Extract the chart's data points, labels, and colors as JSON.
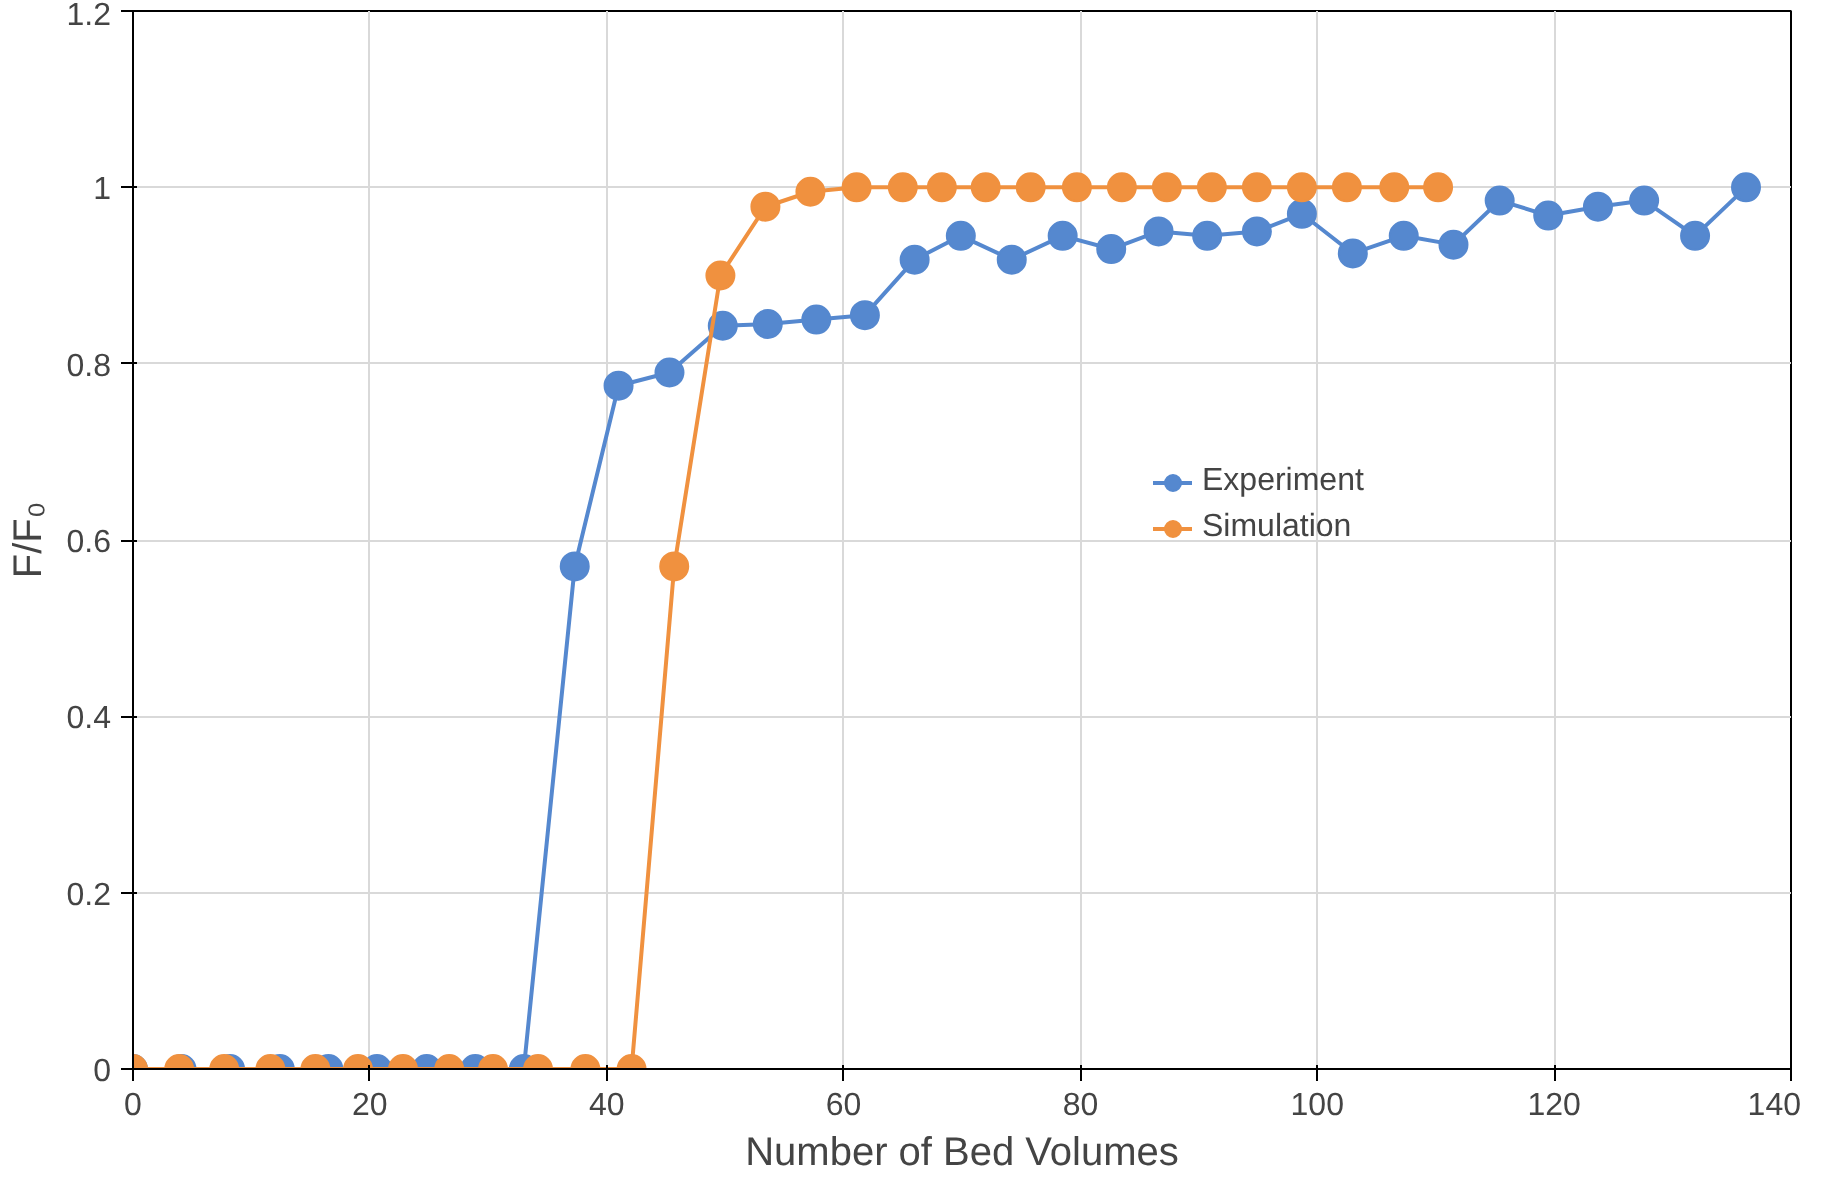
{
  "chart_data": {
    "type": "line",
    "xlabel": "Number of Bed Volumes",
    "ylabel": "F/F₀",
    "xlim": [
      0,
      140
    ],
    "xticks": [
      0,
      20,
      40,
      60,
      80,
      100,
      120,
      140
    ],
    "ylim": [
      0,
      1.2
    ],
    "yticks": [
      0,
      0.2,
      0.4,
      0.6,
      0.8,
      1,
      1.2
    ],
    "grid": true,
    "legend": "right",
    "marker": "circle",
    "line_style": "solid",
    "series": [
      {
        "name": "Experiment",
        "color": "#5588cf",
        "x": [
          0,
          4.1,
          8.2,
          12.4,
          16.5,
          20.6,
          24.8,
          28.9,
          33.0,
          37.3,
          41.0,
          45.3,
          49.8,
          53.6,
          57.7,
          61.8,
          66.0,
          69.9,
          74.2,
          78.5,
          82.6,
          86.6,
          90.7,
          94.9,
          98.7,
          103.0,
          107.3,
          111.5,
          115.4,
          119.5,
          123.7,
          127.6,
          131.9,
          136.2
        ],
        "values": [
          0,
          0,
          0,
          0,
          0,
          0,
          0,
          0,
          0,
          0.57,
          0.775,
          0.79,
          0.843,
          0.845,
          0.85,
          0.855,
          0.918,
          0.945,
          0.918,
          0.945,
          0.93,
          0.95,
          0.945,
          0.95,
          0.97,
          0.925,
          0.945,
          0.935,
          0.985,
          0.968,
          0.978,
          0.985,
          0.945,
          1.0
        ]
      },
      {
        "name": "Simulation",
        "color": "#f0913f",
        "x": [
          0,
          3.9,
          7.7,
          11.6,
          15.4,
          19.0,
          22.8,
          26.7,
          30.4,
          34.2,
          38.2,
          42.1,
          45.7,
          49.6,
          53.4,
          57.2,
          61.1,
          65.0,
          68.3,
          72.0,
          75.8,
          79.7,
          83.5,
          87.3,
          91.1,
          94.9,
          98.7,
          102.5,
          106.5,
          110.2
        ],
        "values": [
          0,
          0,
          0,
          0,
          0,
          0,
          0,
          0,
          0,
          0,
          0,
          0,
          0.57,
          0.9,
          0.978,
          0.995,
          1,
          1,
          1,
          1,
          1,
          1,
          1,
          1,
          1,
          1,
          1,
          1,
          1,
          1
        ]
      }
    ]
  }
}
